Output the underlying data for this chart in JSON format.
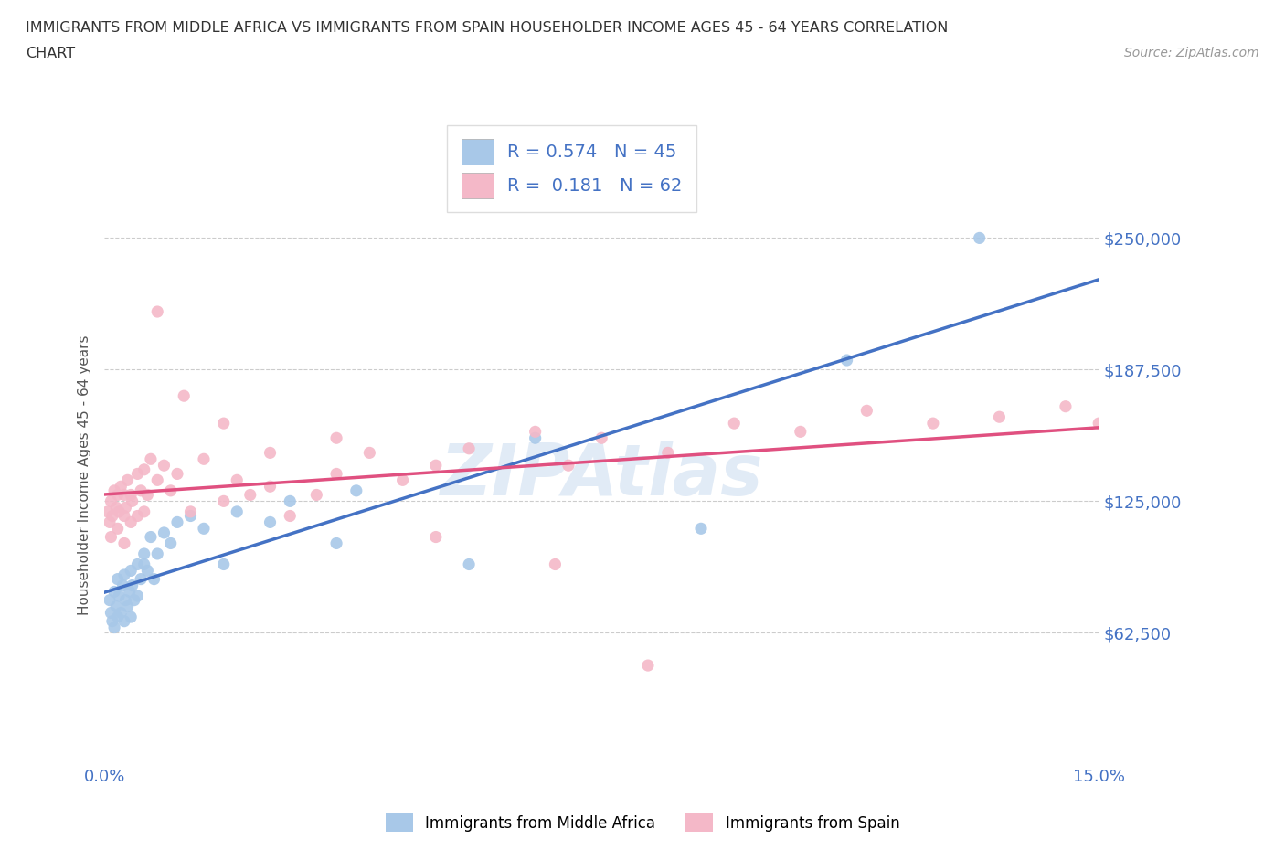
{
  "title_line1": "IMMIGRANTS FROM MIDDLE AFRICA VS IMMIGRANTS FROM SPAIN HOUSEHOLDER INCOME AGES 45 - 64 YEARS CORRELATION",
  "title_line2": "CHART",
  "source_text": "Source: ZipAtlas.com",
  "ylabel": "Householder Income Ages 45 - 64 years",
  "xlim": [
    0.0,
    0.15
  ],
  "ylim": [
    0,
    275000
  ],
  "yticks": [
    62500,
    125000,
    187500,
    250000
  ],
  "ytick_labels": [
    "$62,500",
    "$125,000",
    "$187,500",
    "$250,000"
  ],
  "xticks": [
    0.0,
    0.03,
    0.06,
    0.09,
    0.12,
    0.15
  ],
  "xtick_labels": [
    "0.0%",
    "",
    "",
    "",
    "",
    "15.0%"
  ],
  "legend_R1": "R = 0.574",
  "legend_N1": "N = 45",
  "legend_R2": "R = 0.181",
  "legend_N2": "N = 62",
  "color_blue": "#a8c8e8",
  "color_pink": "#f4b8c8",
  "color_blue_line": "#4472c4",
  "color_pink_line": "#e05080",
  "color_title": "#404040",
  "color_tick_labels": "#4472c4",
  "color_source": "#999999",
  "color_grid": "#cccccc",
  "blue_x": [
    0.0008,
    0.001,
    0.0012,
    0.0015,
    0.0015,
    0.0018,
    0.002,
    0.002,
    0.0022,
    0.0025,
    0.0028,
    0.003,
    0.003,
    0.0032,
    0.0035,
    0.0038,
    0.004,
    0.004,
    0.0042,
    0.0045,
    0.005,
    0.005,
    0.0055,
    0.006,
    0.006,
    0.0065,
    0.007,
    0.0075,
    0.008,
    0.009,
    0.01,
    0.011,
    0.013,
    0.015,
    0.018,
    0.02,
    0.025,
    0.028,
    0.035,
    0.038,
    0.055,
    0.065,
    0.09,
    0.112,
    0.132
  ],
  "blue_y": [
    78000,
    72000,
    68000,
    82000,
    65000,
    75000,
    88000,
    70000,
    80000,
    72000,
    85000,
    90000,
    68000,
    78000,
    75000,
    82000,
    92000,
    70000,
    85000,
    78000,
    95000,
    80000,
    88000,
    95000,
    100000,
    92000,
    108000,
    88000,
    100000,
    110000,
    105000,
    115000,
    118000,
    112000,
    95000,
    120000,
    115000,
    125000,
    105000,
    130000,
    95000,
    155000,
    112000,
    192000,
    250000
  ],
  "pink_x": [
    0.0005,
    0.0008,
    0.001,
    0.001,
    0.0012,
    0.0015,
    0.0018,
    0.002,
    0.002,
    0.0022,
    0.0025,
    0.003,
    0.003,
    0.003,
    0.0032,
    0.0035,
    0.004,
    0.004,
    0.0042,
    0.005,
    0.005,
    0.0055,
    0.006,
    0.006,
    0.0065,
    0.007,
    0.008,
    0.009,
    0.01,
    0.011,
    0.013,
    0.015,
    0.018,
    0.02,
    0.022,
    0.025,
    0.028,
    0.032,
    0.035,
    0.04,
    0.045,
    0.05,
    0.055,
    0.065,
    0.07,
    0.075,
    0.085,
    0.095,
    0.105,
    0.115,
    0.125,
    0.135,
    0.145,
    0.15,
    0.008,
    0.012,
    0.018,
    0.025,
    0.035,
    0.05,
    0.068,
    0.082
  ],
  "pink_y": [
    120000,
    115000,
    125000,
    108000,
    118000,
    130000,
    122000,
    128000,
    112000,
    120000,
    132000,
    118000,
    128000,
    105000,
    122000,
    135000,
    128000,
    115000,
    125000,
    138000,
    118000,
    130000,
    140000,
    120000,
    128000,
    145000,
    135000,
    142000,
    130000,
    138000,
    120000,
    145000,
    125000,
    135000,
    128000,
    132000,
    118000,
    128000,
    155000,
    148000,
    135000,
    142000,
    150000,
    158000,
    142000,
    155000,
    148000,
    162000,
    158000,
    168000,
    162000,
    165000,
    170000,
    162000,
    215000,
    175000,
    162000,
    148000,
    138000,
    108000,
    95000,
    47000
  ]
}
